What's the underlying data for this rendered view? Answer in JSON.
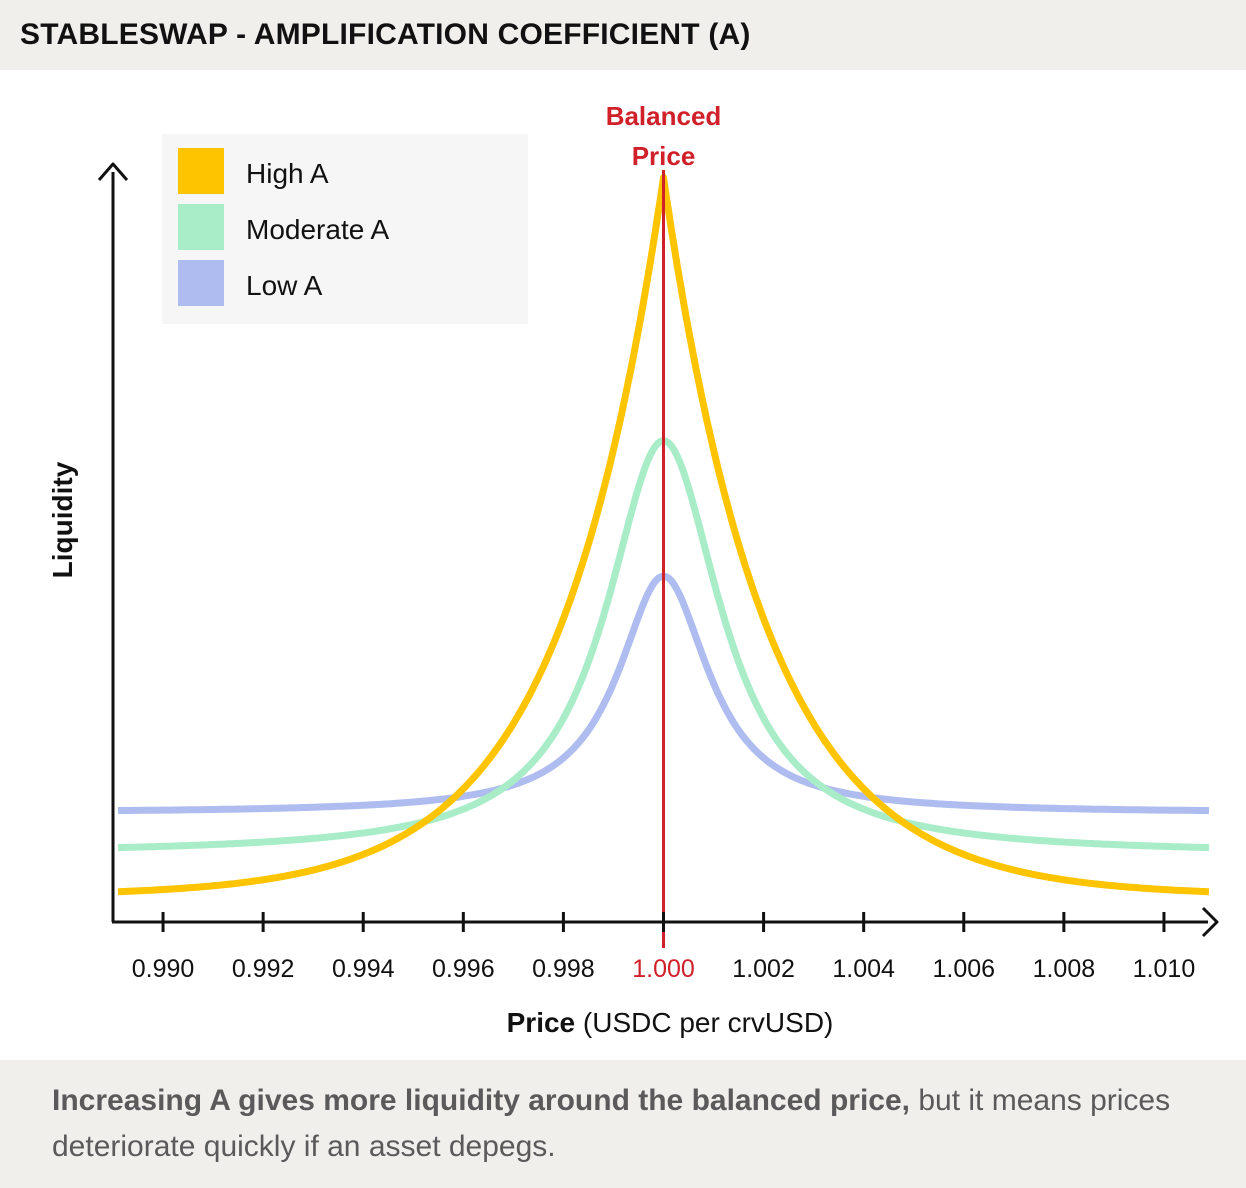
{
  "header": {
    "title": "STABLESWAP - AMPLIFICATION COEFFICIENT (A)"
  },
  "footer": {
    "caption_bold": "Increasing A gives more liquidity around the balanced price,",
    "caption_rest": " but it means prices deteriorate quickly if an asset depegs."
  },
  "chart_data": {
    "type": "line",
    "title": "",
    "xlabel_bold": "Price",
    "xlabel_rest": " (USDC per crvUSD)",
    "ylabel": "Liquidity",
    "y_ticks_shown": false,
    "xlim": [
      0.989,
      1.011
    ],
    "ylim": [
      0,
      1
    ],
    "grid": false,
    "x_ticks": [
      "0.990",
      "0.992",
      "0.994",
      "0.996",
      "0.998",
      "1.000",
      "1.002",
      "1.004",
      "1.006",
      "1.008",
      "1.010"
    ],
    "x_tick_values": [
      0.99,
      0.992,
      0.994,
      0.996,
      0.998,
      1.0,
      1.002,
      1.004,
      1.006,
      1.008,
      1.01
    ],
    "highlight_tick": "1.000",
    "annotation": {
      "label_line1": "Balanced",
      "label_line2": "Price",
      "x": 1.0,
      "color": "#d0202a"
    },
    "legend_position": "top-left",
    "series": [
      {
        "name": "High A",
        "color": "#fec400",
        "peak": 0.99,
        "tail": 0.035,
        "shape": "cusp",
        "k": 0.0021
      },
      {
        "name": "Moderate A",
        "color": "#a9edc8",
        "peak": 0.64,
        "tail": 0.09,
        "shape": "smooth",
        "k": 0.0014
      },
      {
        "name": "Low A",
        "color": "#aebcef",
        "peak": 0.46,
        "tail": 0.145,
        "shape": "smooth",
        "k": 0.0011
      }
    ]
  }
}
